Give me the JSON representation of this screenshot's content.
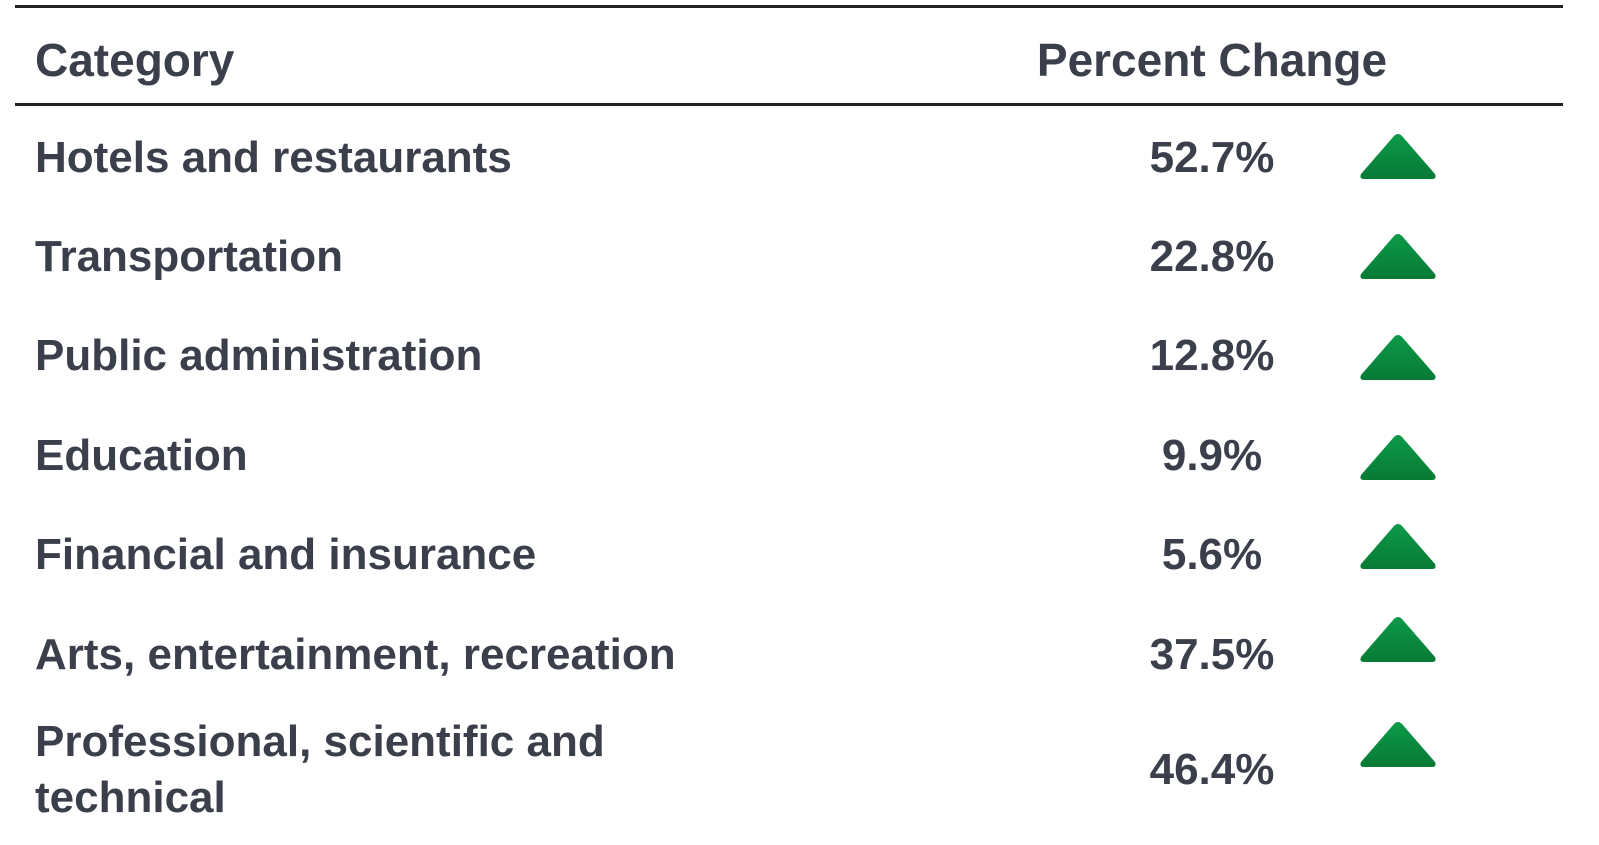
{
  "table": {
    "header": [
      "Category",
      "Percent Change"
    ],
    "rows": [
      [
        "Hotels and restaurants",
        "52.7%"
      ],
      [
        "Transportation",
        "22.8%"
      ],
      [
        "Public administration",
        "12.8%"
      ],
      [
        "Education",
        "9.9%"
      ],
      [
        "Financial and insurance",
        "5.6%"
      ],
      [
        "Arts, entertainment, recreation",
        "37.5%"
      ],
      [
        "Professional, scientific and technical",
        "46.4%"
      ]
    ]
  }
}
